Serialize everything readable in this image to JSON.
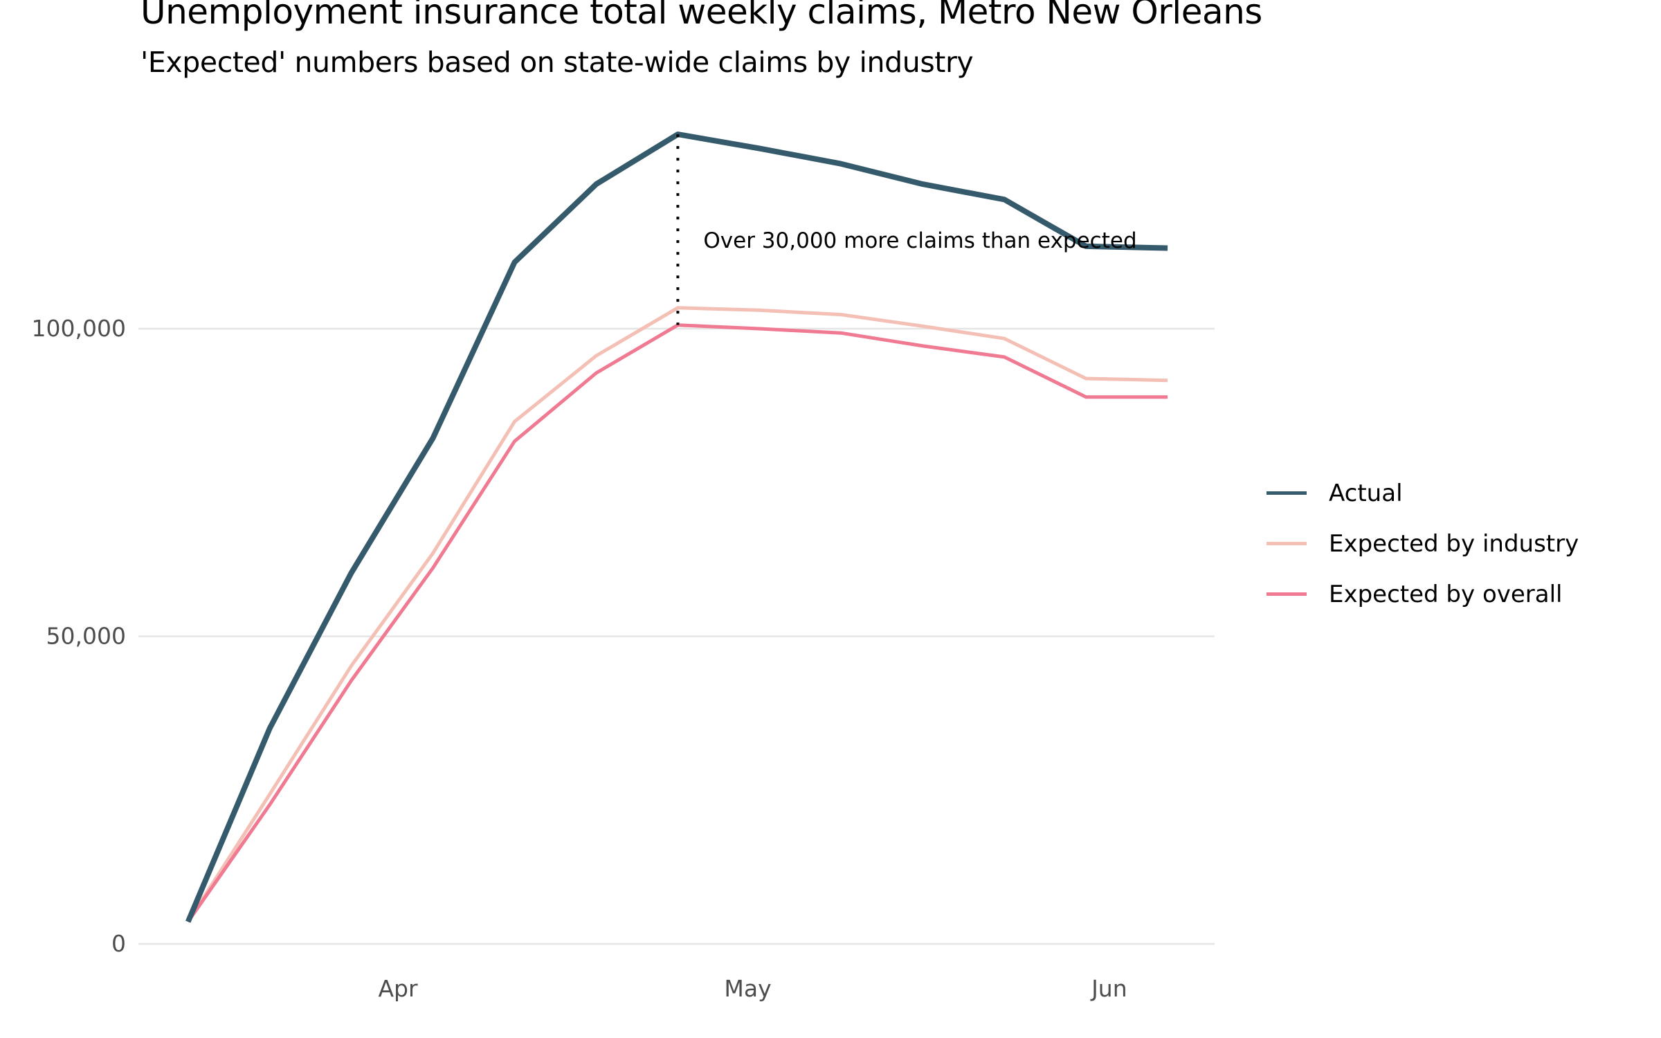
{
  "chart_data": {
    "type": "line",
    "title": "Unemployment insurance total weekly claims, Metro New Orleans",
    "subtitle": "'Expected' numbers based on state-wide claims by industry",
    "xlabel": "",
    "ylabel": "",
    "x": [
      "2020-03-14",
      "2020-03-21",
      "2020-03-28",
      "2020-04-04",
      "2020-04-11",
      "2020-04-18",
      "2020-04-25",
      "2020-05-02",
      "2020-05-09",
      "2020-05-16",
      "2020-05-23",
      "2020-05-30",
      "2020-06-06"
    ],
    "x_ticks": [
      {
        "date": "2020-04-01",
        "label": "Apr"
      },
      {
        "date": "2020-05-01",
        "label": "May"
      },
      {
        "date": "2020-06-01",
        "label": "Jun"
      }
    ],
    "y_ticks": [
      {
        "value": 0,
        "label": "0"
      },
      {
        "value": 50000,
        "label": "50,000"
      },
      {
        "value": 100000,
        "label": "100,000"
      }
    ],
    "ylim": [
      0,
      133000
    ],
    "grid": "horizontal",
    "legend_position": "right",
    "series": [
      {
        "name": "Actual",
        "color": "#345a6b",
        "values": [
          3600,
          35000,
          60300,
          82200,
          110800,
          123500,
          131600,
          129300,
          126800,
          123500,
          121000,
          113400,
          113100
        ]
      },
      {
        "name": "Expected by industry",
        "color": "#f4bfb4",
        "values": [
          3600,
          24300,
          45200,
          63500,
          84900,
          95600,
          103400,
          103000,
          102300,
          100400,
          98400,
          91900,
          91600
        ]
      },
      {
        "name": "Expected by overall",
        "color": "#ef7a92",
        "values": [
          3600,
          22600,
          42800,
          61100,
          81700,
          92800,
          100600,
          100000,
          99300,
          97200,
          95400,
          88900,
          88900
        ]
      }
    ],
    "annotation": {
      "text": "Over 30,000 more claims than expected",
      "date": "2020-04-25",
      "from_series": "Actual",
      "to_series": "Expected by overall"
    }
  }
}
